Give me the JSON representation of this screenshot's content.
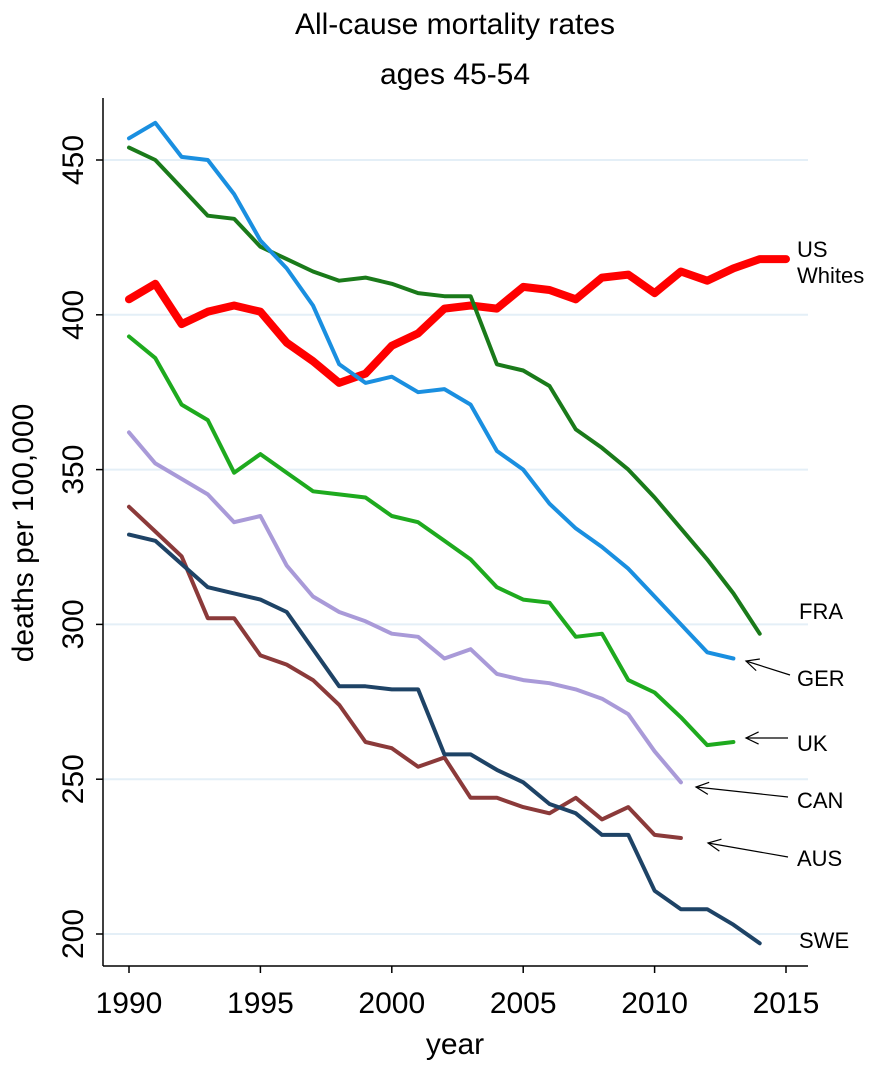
{
  "chart_data": {
    "type": "line",
    "title": "All-cause mortality rates",
    "subtitle": "ages 45-54",
    "xlabel": "year",
    "ylabel": "deaths per 100,000",
    "xlim": [
      1990,
      2015
    ],
    "ylim": [
      200,
      460
    ],
    "xticks": [
      "1990",
      "1995",
      "2000",
      "2005",
      "2010",
      "2015"
    ],
    "yticks": [
      "200",
      "250",
      "300",
      "350",
      "400",
      "450"
    ],
    "grid": "horizontal",
    "legend": "direct-labels-right",
    "series": [
      {
        "name": "US Whites",
        "label_lines": [
          "US",
          "Whites"
        ],
        "color": "#ff0000",
        "x": [
          1990,
          1991,
          1992,
          1993,
          1994,
          1995,
          1996,
          1997,
          1998,
          1999,
          2000,
          2001,
          2002,
          2003,
          2004,
          2005,
          2006,
          2007,
          2008,
          2009,
          2010,
          2011,
          2012,
          2013,
          2014,
          2015
        ],
        "values": [
          405,
          410,
          397,
          401,
          403,
          401,
          391,
          385,
          378,
          381,
          390,
          394,
          402,
          403,
          402,
          409,
          408,
          405,
          412,
          413,
          407,
          414,
          411,
          415,
          418,
          418
        ]
      },
      {
        "name": "FRA",
        "label_lines": [
          "FRA"
        ],
        "color": "#1a7a1a",
        "x": [
          1990,
          1991,
          1992,
          1993,
          1994,
          1995,
          1996,
          1997,
          1998,
          1999,
          2000,
          2001,
          2002,
          2003,
          2004,
          2005,
          2006,
          2007,
          2008,
          2009,
          2010,
          2011,
          2012,
          2013,
          2014
        ],
        "values": [
          454,
          450,
          441,
          432,
          431,
          422,
          418,
          414,
          411,
          412,
          410,
          407,
          406,
          406,
          384,
          382,
          377,
          363,
          357,
          350,
          341,
          331,
          321,
          310,
          297
        ]
      },
      {
        "name": "GER",
        "label_lines": [
          "GER"
        ],
        "color": "#1a8fe0",
        "x": [
          1990,
          1991,
          1992,
          1993,
          1994,
          1995,
          1996,
          1997,
          1998,
          1999,
          2000,
          2001,
          2002,
          2003,
          2004,
          2005,
          2006,
          2007,
          2008,
          2009,
          2010,
          2011,
          2012,
          2013
        ],
        "values": [
          457,
          462,
          451,
          450,
          439,
          424,
          415,
          403,
          384,
          378,
          380,
          375,
          376,
          371,
          356,
          350,
          339,
          331,
          325,
          318,
          309,
          300,
          291,
          289
        ]
      },
      {
        "name": "UK",
        "label_lines": [
          "UK"
        ],
        "color": "#1eaa1e",
        "x": [
          1990,
          1991,
          1992,
          1993,
          1994,
          1995,
          1996,
          1997,
          1998,
          1999,
          2000,
          2001,
          2002,
          2003,
          2004,
          2005,
          2006,
          2007,
          2008,
          2009,
          2010,
          2011,
          2012,
          2013
        ],
        "values": [
          393,
          386,
          371,
          366,
          349,
          355,
          349,
          343,
          342,
          341,
          335,
          333,
          327,
          321,
          312,
          308,
          307,
          296,
          297,
          282,
          278,
          270,
          261,
          262
        ]
      },
      {
        "name": "CAN",
        "label_lines": [
          "CAN"
        ],
        "color": "#a99ad8",
        "x": [
          1990,
          1991,
          1992,
          1993,
          1994,
          1995,
          1996,
          1997,
          1998,
          1999,
          2000,
          2001,
          2002,
          2003,
          2004,
          2005,
          2006,
          2007,
          2008,
          2009,
          2010,
          2011
        ],
        "values": [
          362,
          352,
          347,
          342,
          333,
          335,
          319,
          309,
          304,
          301,
          297,
          296,
          289,
          292,
          284,
          282,
          281,
          279,
          276,
          271,
          259,
          249
        ]
      },
      {
        "name": "AUS",
        "label_lines": [
          "AUS"
        ],
        "color": "#8b3a3a",
        "x": [
          1990,
          1991,
          1992,
          1993,
          1994,
          1995,
          1996,
          1997,
          1998,
          1999,
          2000,
          2001,
          2002,
          2003,
          2004,
          2005,
          2006,
          2007,
          2008,
          2009,
          2010,
          2011
        ],
        "values": [
          338,
          330,
          322,
          302,
          302,
          290,
          287,
          282,
          274,
          262,
          260,
          254,
          257,
          244,
          244,
          241,
          239,
          244,
          237,
          241,
          232,
          231
        ]
      },
      {
        "name": "SWE",
        "label_lines": [
          "SWE"
        ],
        "color": "#1e4366",
        "x": [
          1990,
          1991,
          1993,
          1994,
          1995,
          1996,
          1997,
          1998,
          1999,
          2000,
          2001,
          2002,
          2003,
          2004,
          2005,
          2006,
          2007,
          2008,
          2009,
          2010,
          2011,
          2012,
          2013,
          2014
        ],
        "values": [
          329,
          327,
          312,
          310,
          308,
          304,
          292,
          280,
          280,
          279,
          279,
          258,
          258,
          253,
          249,
          242,
          239,
          232,
          232,
          214,
          208,
          208,
          203,
          197
        ]
      }
    ]
  }
}
